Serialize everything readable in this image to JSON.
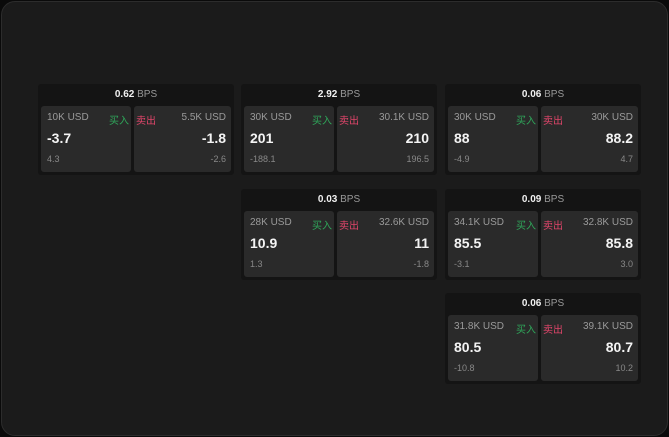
{
  "unit": "BPS",
  "buy_label": "买入",
  "sell_label": "卖出",
  "colors": {
    "buy": "#2fa65a",
    "sell": "#e0456a"
  },
  "panels": [
    {
      "spread": "0.62",
      "buy": {
        "size": "10K USD",
        "price": "-3.7",
        "change": "4.3"
      },
      "sell": {
        "size": "5.5K USD",
        "price": "-1.8",
        "change": "-2.6"
      }
    },
    {
      "spread": "2.92",
      "buy": {
        "size": "30K USD",
        "price": "201",
        "change": "-188.1"
      },
      "sell": {
        "size": "30.1K USD",
        "price": "210",
        "change": "196.5"
      }
    },
    {
      "spread": "0.06",
      "buy": {
        "size": "30K USD",
        "price": "88",
        "change": "-4.9"
      },
      "sell": {
        "size": "30K USD",
        "price": "88.2",
        "change": "4.7"
      }
    },
    {
      "spread": "0.03",
      "buy": {
        "size": "28K USD",
        "price": "10.9",
        "change": "1.3"
      },
      "sell": {
        "size": "32.6K USD",
        "price": "11",
        "change": "-1.8"
      }
    },
    {
      "spread": "0.09",
      "buy": {
        "size": "34.1K USD",
        "price": "85.5",
        "change": "-3.1"
      },
      "sell": {
        "size": "32.8K USD",
        "price": "85.8",
        "change": "3.0"
      }
    },
    {
      "spread": "0.06",
      "buy": {
        "size": "31.8K USD",
        "price": "80.5",
        "change": "-10.8"
      },
      "sell": {
        "size": "39.1K USD",
        "price": "80.7",
        "change": "10.2"
      }
    }
  ]
}
